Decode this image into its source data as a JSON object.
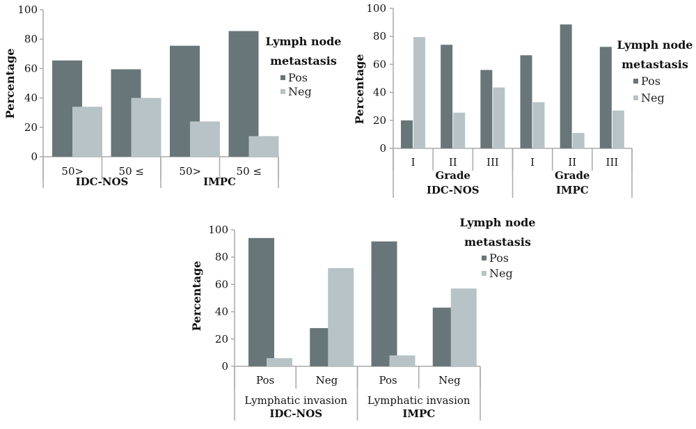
{
  "colors": {
    "pos": "#697679",
    "neg": "#b7c3c7",
    "axis": "#a9a9a9"
  },
  "chart_data": [
    {
      "type": "bar",
      "ylabel": "Percentage",
      "ylim": [
        0,
        100
      ],
      "yticks": [
        "0",
        "20",
        "40",
        "60",
        "80",
        "100"
      ],
      "legend": {
        "title_line1": "Lymph node",
        "title_line2": "metastasis",
        "pos": "Pos",
        "neg": "Neg"
      },
      "categories": [
        "50>",
        "50 ≤",
        "50>",
        "50 ≤"
      ],
      "groups": [
        {
          "sub": "",
          "label": "IDC-NOS",
          "count": 2
        },
        {
          "sub": "",
          "label": "IMPC",
          "count": 2
        }
      ],
      "series": [
        {
          "name": "Pos",
          "values": [
            65.5,
            59.5,
            75.5,
            85.5
          ]
        },
        {
          "name": "Neg",
          "values": [
            34,
            40,
            24,
            14
          ]
        }
      ]
    },
    {
      "type": "bar",
      "ylabel": "Percentage",
      "ylim": [
        0,
        100
      ],
      "yticks": [
        "0",
        "20",
        "40",
        "60",
        "80",
        "100"
      ],
      "legend": {
        "title_line1": "Lymph node",
        "title_line2": "metastasis",
        "pos": "Pos",
        "neg": "Neg"
      },
      "categories": [
        "I",
        "II",
        "III",
        "I",
        "II",
        "III"
      ],
      "groups": [
        {
          "sub": "Grade",
          "label": "IDC-NOS",
          "count": 3
        },
        {
          "sub": "Grade",
          "label": "IMPC",
          "count": 3
        }
      ],
      "series": [
        {
          "name": "Pos",
          "values": [
            20,
            74,
            56,
            66.5,
            88.5,
            72.5
          ]
        },
        {
          "name": "Neg",
          "values": [
            79.5,
            25.5,
            43.5,
            33,
            11,
            27
          ]
        }
      ]
    },
    {
      "type": "bar",
      "ylabel": "Percentage",
      "ylim": [
        0,
        100
      ],
      "yticks": [
        "0",
        "20",
        "40",
        "60",
        "80",
        "100"
      ],
      "legend": {
        "title_line1": "Lymph node",
        "title_line2": "metastasis",
        "pos": "Pos",
        "neg": "Neg"
      },
      "categories": [
        "Pos",
        "Neg",
        "Pos",
        "Neg"
      ],
      "groups": [
        {
          "sub": "Lymphatic invasion",
          "label": "IDC-NOS",
          "count": 2
        },
        {
          "sub": "Lymphatic invasion",
          "label": "IMPC",
          "count": 2
        }
      ],
      "series": [
        {
          "name": "Pos",
          "values": [
            94,
            28,
            91.5,
            43
          ]
        },
        {
          "name": "Neg",
          "values": [
            6,
            72,
            8,
            57
          ]
        }
      ]
    }
  ]
}
